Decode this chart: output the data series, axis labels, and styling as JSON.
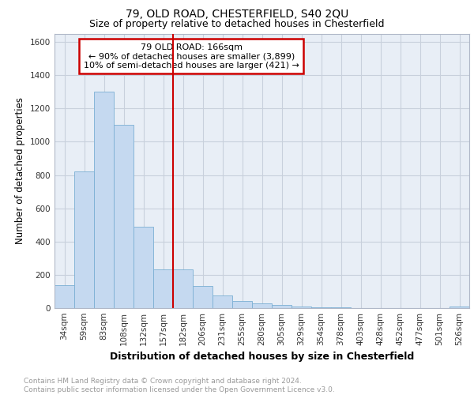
{
  "title1": "79, OLD ROAD, CHESTERFIELD, S40 2QU",
  "title2": "Size of property relative to detached houses in Chesterfield",
  "xlabel": "Distribution of detached houses by size in Chesterfield",
  "ylabel": "Number of detached properties",
  "categories": [
    "34sqm",
    "59sqm",
    "83sqm",
    "108sqm",
    "132sqm",
    "157sqm",
    "182sqm",
    "206sqm",
    "231sqm",
    "255sqm",
    "280sqm",
    "305sqm",
    "329sqm",
    "354sqm",
    "378sqm",
    "403sqm",
    "428sqm",
    "452sqm",
    "477sqm",
    "501sqm",
    "526sqm"
  ],
  "values": [
    140,
    820,
    1300,
    1100,
    490,
    235,
    235,
    135,
    75,
    45,
    30,
    20,
    10,
    5,
    3,
    0,
    0,
    0,
    0,
    0,
    10
  ],
  "bar_color": "#c5d9f0",
  "bar_edge_color": "#7bafd4",
  "vline_x_index": 6,
  "vline_color": "#cc0000",
  "annotation_text": "79 OLD ROAD: 166sqm\n← 90% of detached houses are smaller (3,899)\n10% of semi-detached houses are larger (421) →",
  "annotation_box_color": "#cc0000",
  "ylim": [
    0,
    1650
  ],
  "yticks": [
    0,
    200,
    400,
    600,
    800,
    1000,
    1200,
    1400,
    1600
  ],
  "grid_color": "#c8d0dc",
  "bg_color": "#e8eef6",
  "footer_text": "Contains HM Land Registry data © Crown copyright and database right 2024.\nContains public sector information licensed under the Open Government Licence v3.0.",
  "title1_fontsize": 10,
  "title2_fontsize": 9,
  "xlabel_fontsize": 9,
  "ylabel_fontsize": 8.5,
  "tick_fontsize": 7.5,
  "annotation_fontsize": 8,
  "footer_fontsize": 6.5
}
